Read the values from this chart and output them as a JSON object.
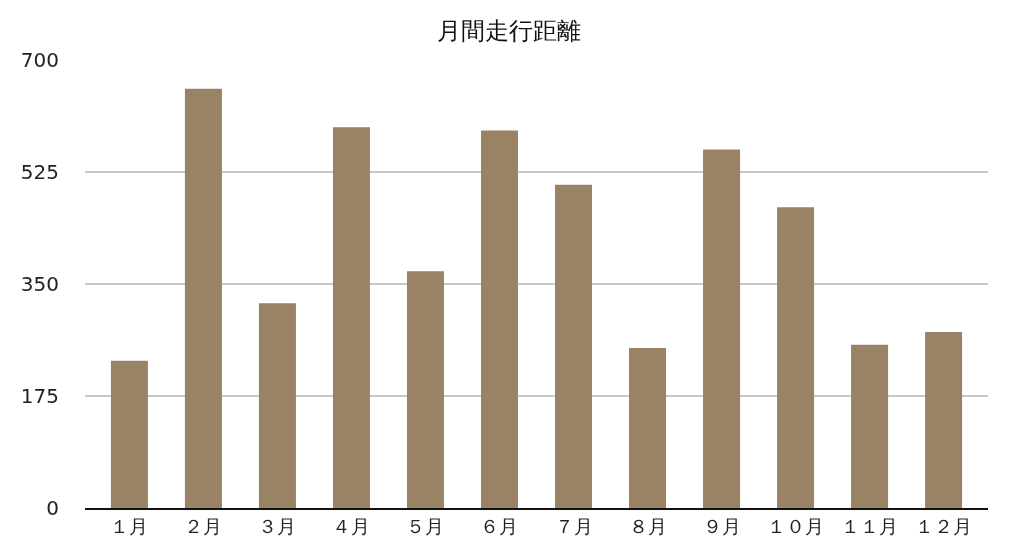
{
  "chart_data": {
    "type": "bar",
    "title": "月間走行距離",
    "categories": [
      "１月",
      "２月",
      "３月",
      "４月",
      "５月",
      "６月",
      "７月",
      "８月",
      "９月",
      "１０月",
      "１１月",
      "１２月"
    ],
    "values": [
      230,
      655,
      320,
      595,
      370,
      590,
      505,
      250,
      560,
      470,
      255,
      275
    ],
    "color": "#9a8265",
    "ylim": [
      0,
      700
    ],
    "yticks": [
      0,
      175,
      350,
      525,
      700
    ],
    "grid": "y"
  }
}
